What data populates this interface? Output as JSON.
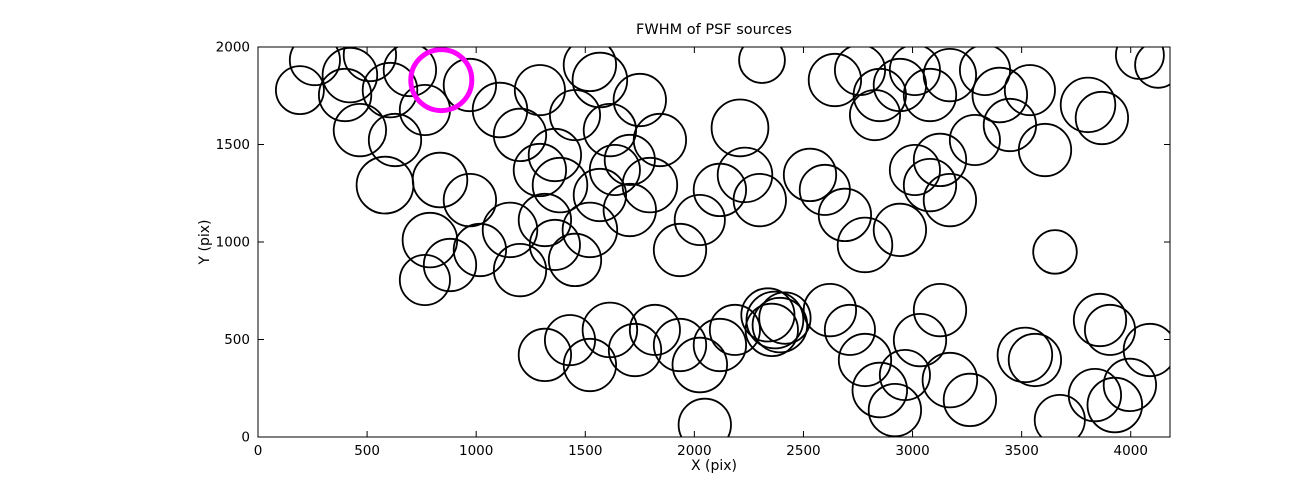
{
  "figure": {
    "background": "#ffffff"
  },
  "chart_data": {
    "type": "scatter",
    "title": "FWHM of PSF sources",
    "xlabel": "X (pix)",
    "ylabel": "Y (pix)",
    "xlim": [
      0,
      4180
    ],
    "ylim": [
      0,
      2000
    ],
    "xticks": [
      0,
      500,
      1000,
      1500,
      2000,
      2500,
      3000,
      3500,
      4000
    ],
    "yticks": [
      0,
      500,
      1000,
      1500,
      2000
    ],
    "grid": false,
    "legend": "none",
    "marker_style": {
      "shape": "open-circle",
      "fill": "none",
      "stroke": "#000000",
      "stroke_width": 1.8
    },
    "highlight_style": {
      "shape": "open-circle",
      "fill": "none",
      "stroke": "#ff00ff",
      "stroke_width": 5
    },
    "points": [
      [
        261,
        1933,
        115
      ],
      [
        421,
        1856,
        125
      ],
      [
        399,
        1754,
        120
      ],
      [
        192,
        1779,
        110
      ],
      [
        513,
        1959,
        120
      ],
      [
        605,
        1779,
        125
      ],
      [
        467,
        1574,
        120
      ],
      [
        696,
        1882,
        120
      ],
      [
        765,
        1677,
        115
      ],
      [
        628,
        1523,
        120
      ],
      [
        971,
        1805,
        120
      ],
      [
        1109,
        1677,
        125
      ],
      [
        1201,
        1549,
        120
      ],
      [
        1292,
        1779,
        115
      ],
      [
        1361,
        1446,
        120
      ],
      [
        1521,
        1908,
        120
      ],
      [
        1567,
        1831,
        125
      ],
      [
        1613,
        1574,
        120
      ],
      [
        1704,
        1421,
        115
      ],
      [
        1750,
        1728,
        120
      ],
      [
        1842,
        1523,
        120
      ],
      [
        1453,
        1651,
        115
      ],
      [
        2209,
        1585,
        130
      ],
      [
        2310,
        1933,
        105
      ],
      [
        2644,
        1831,
        120
      ],
      [
        2759,
        1882,
        115
      ],
      [
        2850,
        1754,
        120
      ],
      [
        2828,
        1651,
        115
      ],
      [
        2942,
        1805,
        120
      ],
      [
        3011,
        1882,
        115
      ],
      [
        3080,
        1754,
        120
      ],
      [
        3171,
        1856,
        120
      ],
      [
        3332,
        1882,
        115
      ],
      [
        3400,
        1754,
        125
      ],
      [
        3446,
        1600,
        120
      ],
      [
        3538,
        1779,
        115
      ],
      [
        3607,
        1472,
        120
      ],
      [
        3286,
        1523,
        115
      ],
      [
        3126,
        1421,
        120
      ],
      [
        3804,
        1703,
        125
      ],
      [
        3868,
        1636,
        120
      ],
      [
        4042,
        1959,
        110
      ],
      [
        4125,
        1908,
        105
      ],
      [
        582,
        1292,
        130
      ],
      [
        834,
        1318,
        125
      ],
      [
        971,
        1215,
        120
      ],
      [
        788,
        1010,
        125
      ],
      [
        880,
        882,
        120
      ],
      [
        765,
        805,
        115
      ],
      [
        1017,
        959,
        120
      ],
      [
        1155,
        1062,
        125
      ],
      [
        1201,
        856,
        120
      ],
      [
        1292,
        1369,
        120
      ],
      [
        1384,
        1292,
        125
      ],
      [
        1315,
        1113,
        120
      ],
      [
        1361,
        985,
        115
      ],
      [
        1453,
        908,
        120
      ],
      [
        1521,
        1062,
        125
      ],
      [
        1567,
        1241,
        120
      ],
      [
        1636,
        1369,
        115
      ],
      [
        1704,
        1164,
        120
      ],
      [
        1796,
        1292,
        125
      ],
      [
        1934,
        959,
        120
      ],
      [
        2025,
        1113,
        115
      ],
      [
        2117,
        1267,
        120
      ],
      [
        2232,
        1344,
        125
      ],
      [
        2300,
        1215,
        120
      ],
      [
        2530,
        1344,
        120
      ],
      [
        2598,
        1267,
        115
      ],
      [
        2690,
        1139,
        120
      ],
      [
        2782,
        985,
        125
      ],
      [
        2942,
        1062,
        120
      ],
      [
        3011,
        1369,
        115
      ],
      [
        3080,
        1292,
        120
      ],
      [
        3171,
        1215,
        120
      ],
      [
        3653,
        949,
        100
      ],
      [
        2369,
        600,
        130
      ],
      [
        2392,
        574,
        125
      ],
      [
        2355,
        549,
        120
      ],
      [
        2415,
        610,
        118
      ],
      [
        2337,
        626,
        122
      ],
      [
        1315,
        421,
        120
      ],
      [
        1430,
        497,
        115
      ],
      [
        1521,
        369,
        120
      ],
      [
        1613,
        549,
        125
      ],
      [
        1728,
        446,
        120
      ],
      [
        1819,
        549,
        115
      ],
      [
        1934,
        472,
        120
      ],
      [
        2025,
        369,
        125
      ],
      [
        2117,
        472,
        120
      ],
      [
        2186,
        549,
        115
      ],
      [
        2048,
        62,
        120
      ],
      [
        2621,
        651,
        120
      ],
      [
        2713,
        549,
        115
      ],
      [
        2782,
        395,
        120
      ],
      [
        2850,
        241,
        125
      ],
      [
        2919,
        138,
        120
      ],
      [
        2965,
        318,
        115
      ],
      [
        3034,
        497,
        120
      ],
      [
        3126,
        651,
        120
      ],
      [
        3171,
        292,
        125
      ],
      [
        3263,
        190,
        120
      ],
      [
        3515,
        421,
        125
      ],
      [
        3561,
        395,
        120
      ],
      [
        3859,
        600,
        120
      ],
      [
        3905,
        549,
        115
      ],
      [
        3836,
        215,
        120
      ],
      [
        3927,
        164,
        125
      ],
      [
        3996,
        267,
        120
      ],
      [
        3675,
        87,
        115
      ],
      [
        4088,
        446,
        120
      ]
    ],
    "highlighted_point": [
      840,
      1830,
      140
    ]
  }
}
